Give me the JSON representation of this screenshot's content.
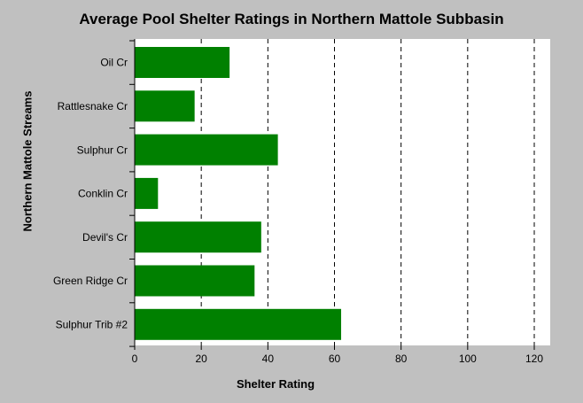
{
  "chart_data": {
    "type": "bar",
    "orientation": "horizontal",
    "title": "Average Pool Shelter Ratings in Northern Mattole Subbasin",
    "xlabel": "Shelter Rating",
    "ylabel": "Northern Mattole Streams",
    "categories": [
      "Oil Cr",
      "Rattlesnake Cr",
      "Sulphur Cr",
      "Conklin Cr",
      "Devil's Cr",
      "Green Ridge Cr",
      "Sulphur Trib #2"
    ],
    "values": [
      28.5,
      18,
      43,
      7,
      38,
      36,
      62
    ],
    "xlim": [
      0,
      120
    ],
    "xticks": [
      0,
      20,
      40,
      60,
      80,
      100,
      120
    ],
    "grid": "vertical dashed",
    "bar_color": "#008000",
    "plot_background": "#ffffff",
    "page_background": "#c0c0c0"
  }
}
